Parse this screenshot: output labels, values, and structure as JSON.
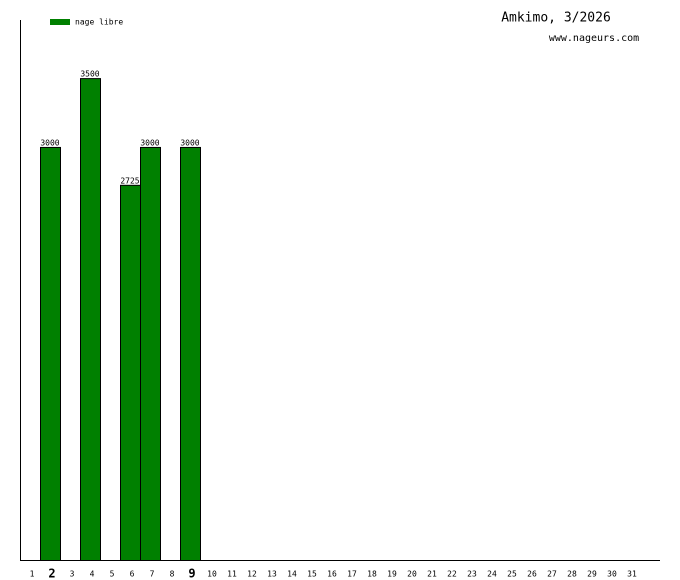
{
  "chart_data": {
    "type": "bar",
    "title": "Amkimo, 3/2026",
    "subtitle": "www.nageurs.com",
    "categories": [
      "1",
      "2",
      "3",
      "4",
      "5",
      "6",
      "7",
      "8",
      "9",
      "10",
      "11",
      "12",
      "13",
      "14",
      "15",
      "16",
      "17",
      "18",
      "19",
      "20",
      "21",
      "22",
      "23",
      "24",
      "25",
      "26",
      "27",
      "28",
      "29",
      "30",
      "31"
    ],
    "bold_categories": [
      "2",
      "9"
    ],
    "series": [
      {
        "name": "nage libre",
        "color": "#008000",
        "values": [
          null,
          3000,
          null,
          3500,
          null,
          2725,
          3000,
          null,
          3000,
          null,
          null,
          null,
          null,
          null,
          null,
          null,
          null,
          null,
          null,
          null,
          null,
          null,
          null,
          null,
          null,
          null,
          null,
          null,
          null,
          null,
          null
        ]
      }
    ],
    "ylim": [
      0,
      3922
    ],
    "legend": "top-left"
  }
}
